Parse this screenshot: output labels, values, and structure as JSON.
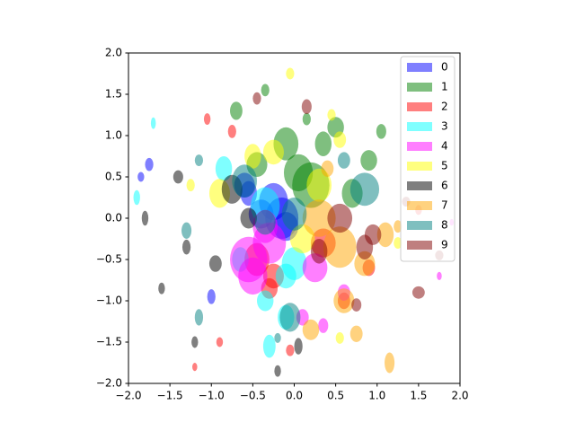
{
  "chart_data": {
    "type": "ellipse",
    "alpha": 0.5,
    "legend": "upper right",
    "xlim": [
      -2,
      2
    ],
    "ylim": [
      -2,
      2
    ],
    "xticks": [
      {
        "value": -2,
        "label": "−2.0"
      },
      {
        "value": -1.5,
        "label": "−1.5"
      },
      {
        "value": -1,
        "label": "−1.0"
      },
      {
        "value": -0.5,
        "label": "−0.5"
      },
      {
        "value": 0,
        "label": "0.0"
      },
      0.5,
      {
        "value": 1,
        "label": "1.0"
      },
      1.5,
      {
        "value": 2,
        "label": "2.0"
      }
    ],
    "yticks": [
      {
        "value": -2,
        "label": "−2.0"
      },
      {
        "value": -1.5,
        "label": "−1.5"
      },
      {
        "value": -1,
        "label": "−1.0"
      },
      {
        "value": -0.5,
        "label": "−0.5"
      },
      {
        "value": 0,
        "label": "0.0"
      },
      0.5,
      {
        "value": 1,
        "label": "1.0"
      },
      1.5,
      {
        "value": 2,
        "label": "2.0"
      }
    ],
    "series": [
      {
        "name": "0",
        "color": "#0000ff",
        "x": [
          -0.25,
          -0.1,
          -0.6,
          -1.85,
          -0.15,
          -1.0,
          -0.4,
          -0.55,
          -1.75
        ],
        "y": [
          0.2,
          -0.1,
          0.4,
          0.5,
          0.0,
          -0.95,
          0.05,
          0.3,
          0.65
        ],
        "widths": [
          0.35,
          0.3,
          0.25,
          0.08,
          0.4,
          0.1,
          0.3,
          0.2,
          0.1
        ],
        "heights": [
          0.45,
          0.35,
          0.3,
          0.12,
          0.5,
          0.18,
          0.35,
          0.3,
          0.16
        ]
      },
      {
        "name": "1",
        "color": "#008000",
        "x": [
          0.2,
          0.05,
          0.5,
          -0.1,
          0.9,
          -0.7,
          0.35,
          1.05,
          -0.45,
          0.7,
          0.15,
          -0.35
        ],
        "y": [
          0.4,
          0.55,
          1.1,
          0.9,
          0.7,
          1.3,
          0.9,
          1.05,
          0.65,
          0.3,
          1.2,
          1.55
        ],
        "widths": [
          0.45,
          0.35,
          0.2,
          0.3,
          0.2,
          0.15,
          0.2,
          0.12,
          0.25,
          0.25,
          0.1,
          0.1
        ],
        "heights": [
          0.55,
          0.45,
          0.25,
          0.4,
          0.25,
          0.22,
          0.3,
          0.18,
          0.3,
          0.35,
          0.15,
          0.15
        ]
      },
      {
        "name": "2",
        "color": "#ff0000",
        "x": [
          -0.45,
          -0.25,
          0.6,
          -1.2,
          -0.9,
          1.5,
          -0.75,
          -0.3,
          0.9,
          -1.05,
          0.35,
          -0.05
        ],
        "y": [
          -0.5,
          -0.7,
          -1.0,
          -1.8,
          -1.5,
          0.1,
          1.05,
          -0.85,
          -0.6,
          1.2,
          -0.3,
          -1.6
        ],
        "widths": [
          0.3,
          0.25,
          0.15,
          0.06,
          0.08,
          0.08,
          0.1,
          0.2,
          0.15,
          0.08,
          0.3,
          0.1
        ],
        "heights": [
          0.4,
          0.3,
          0.2,
          0.1,
          0.12,
          0.12,
          0.16,
          0.25,
          0.2,
          0.14,
          0.35,
          0.14
        ]
      },
      {
        "name": "3",
        "color": "#00ffff",
        "x": [
          -0.35,
          0.0,
          -0.1,
          -0.65,
          -0.3,
          -1.7,
          -1.9,
          -0.35,
          -0.85,
          -0.1
        ],
        "y": [
          0.15,
          -0.55,
          -0.7,
          -0.5,
          -1.55,
          1.15,
          0.25,
          -1.0,
          0.6,
          -1.2
        ],
        "widths": [
          0.35,
          0.3,
          0.25,
          0.2,
          0.15,
          0.06,
          0.08,
          0.2,
          0.2,
          0.2
        ],
        "heights": [
          0.45,
          0.4,
          0.3,
          0.3,
          0.28,
          0.14,
          0.18,
          0.25,
          0.3,
          0.3
        ]
      },
      {
        "name": "4",
        "color": "#ff00ff",
        "x": [
          -0.55,
          -0.3,
          0.25,
          0.1,
          -0.5,
          1.75,
          0.6,
          0.35,
          1.9,
          -0.35
        ],
        "y": [
          -0.5,
          -0.3,
          -0.6,
          -1.2,
          -0.7,
          -0.7,
          -0.9,
          -1.3,
          -0.05,
          -0.1
        ],
        "widths": [
          0.45,
          0.4,
          0.3,
          0.15,
          0.35,
          0.06,
          0.15,
          0.12,
          0.05,
          0.3
        ],
        "heights": [
          0.55,
          0.5,
          0.35,
          0.2,
          0.45,
          0.1,
          0.2,
          0.18,
          0.08,
          0.4
        ]
      },
      {
        "name": "5",
        "color": "#ffff00",
        "x": [
          0.1,
          -0.9,
          -0.05,
          0.3,
          -1.25,
          1.25,
          -0.5,
          0.45,
          -0.25,
          0.55,
          0.55
        ],
        "y": [
          -0.25,
          0.3,
          1.75,
          0.4,
          0.4,
          -0.3,
          0.75,
          1.25,
          0.8,
          -1.45,
          0.95
        ],
        "widths": [
          0.3,
          0.25,
          0.1,
          0.3,
          0.1,
          0.1,
          0.2,
          0.1,
          0.25,
          0.1,
          0.15
        ],
        "heights": [
          0.35,
          0.35,
          0.14,
          0.4,
          0.15,
          0.14,
          0.3,
          0.14,
          0.3,
          0.14,
          0.2
        ]
      },
      {
        "name": "6",
        "color": "#000000",
        "x": [
          -0.75,
          -1.4,
          -1.6,
          -0.95,
          -0.2,
          -1.2,
          -0.55,
          -1.3,
          0.05,
          -1.8
        ],
        "y": [
          0.35,
          0.5,
          -0.85,
          -0.55,
          -1.85,
          -1.5,
          0.0,
          -0.35,
          -1.55,
          0.0
        ],
        "widths": [
          0.25,
          0.12,
          0.08,
          0.15,
          0.08,
          0.08,
          0.2,
          0.1,
          0.1,
          0.08
        ],
        "heights": [
          0.35,
          0.16,
          0.14,
          0.2,
          0.14,
          0.14,
          0.25,
          0.18,
          0.2,
          0.18
        ]
      },
      {
        "name": "7",
        "color": "#ffa500",
        "x": [
          0.55,
          0.3,
          0.85,
          0.6,
          1.1,
          0.2,
          0.4,
          1.25,
          0.75,
          1.15
        ],
        "y": [
          -0.35,
          0.0,
          -0.55,
          -1.0,
          -0.2,
          -1.35,
          0.6,
          -0.1,
          -1.4,
          -1.75
        ],
        "widths": [
          0.4,
          0.4,
          0.25,
          0.25,
          0.2,
          0.2,
          0.15,
          0.1,
          0.15,
          0.12
        ],
        "heights": [
          0.5,
          0.45,
          0.3,
          0.3,
          0.3,
          0.25,
          0.2,
          0.15,
          0.2,
          0.25
        ]
      },
      {
        "name": "8",
        "color": "#008080",
        "x": [
          0.85,
          -0.05,
          -0.6,
          -0.35,
          0.0,
          -1.15,
          -1.3,
          -0.2,
          0.6,
          -1.15
        ],
        "y": [
          0.35,
          -1.2,
          0.45,
          -0.05,
          0.05,
          -1.2,
          -0.15,
          -1.45,
          0.7,
          0.7
        ],
        "widths": [
          0.35,
          0.25,
          0.3,
          0.25,
          0.3,
          0.1,
          0.12,
          0.08,
          0.15,
          0.1
        ],
        "heights": [
          0.4,
          0.35,
          0.4,
          0.3,
          0.4,
          0.2,
          0.2,
          0.12,
          0.2,
          0.14
        ]
      },
      {
        "name": "9",
        "color": "#800000",
        "x": [
          0.55,
          0.95,
          1.5,
          0.75,
          0.3,
          1.75,
          -0.45,
          0.15,
          0.85,
          1.35
        ],
        "y": [
          0.0,
          -0.2,
          -0.9,
          -1.05,
          -0.4,
          -0.45,
          1.45,
          1.35,
          -0.35,
          0.2
        ],
        "widths": [
          0.3,
          0.2,
          0.15,
          0.12,
          0.2,
          0.1,
          0.1,
          0.12,
          0.2,
          0.1
        ],
        "heights": [
          0.35,
          0.25,
          0.15,
          0.16,
          0.3,
          0.12,
          0.15,
          0.18,
          0.3,
          0.12
        ]
      }
    ]
  }
}
